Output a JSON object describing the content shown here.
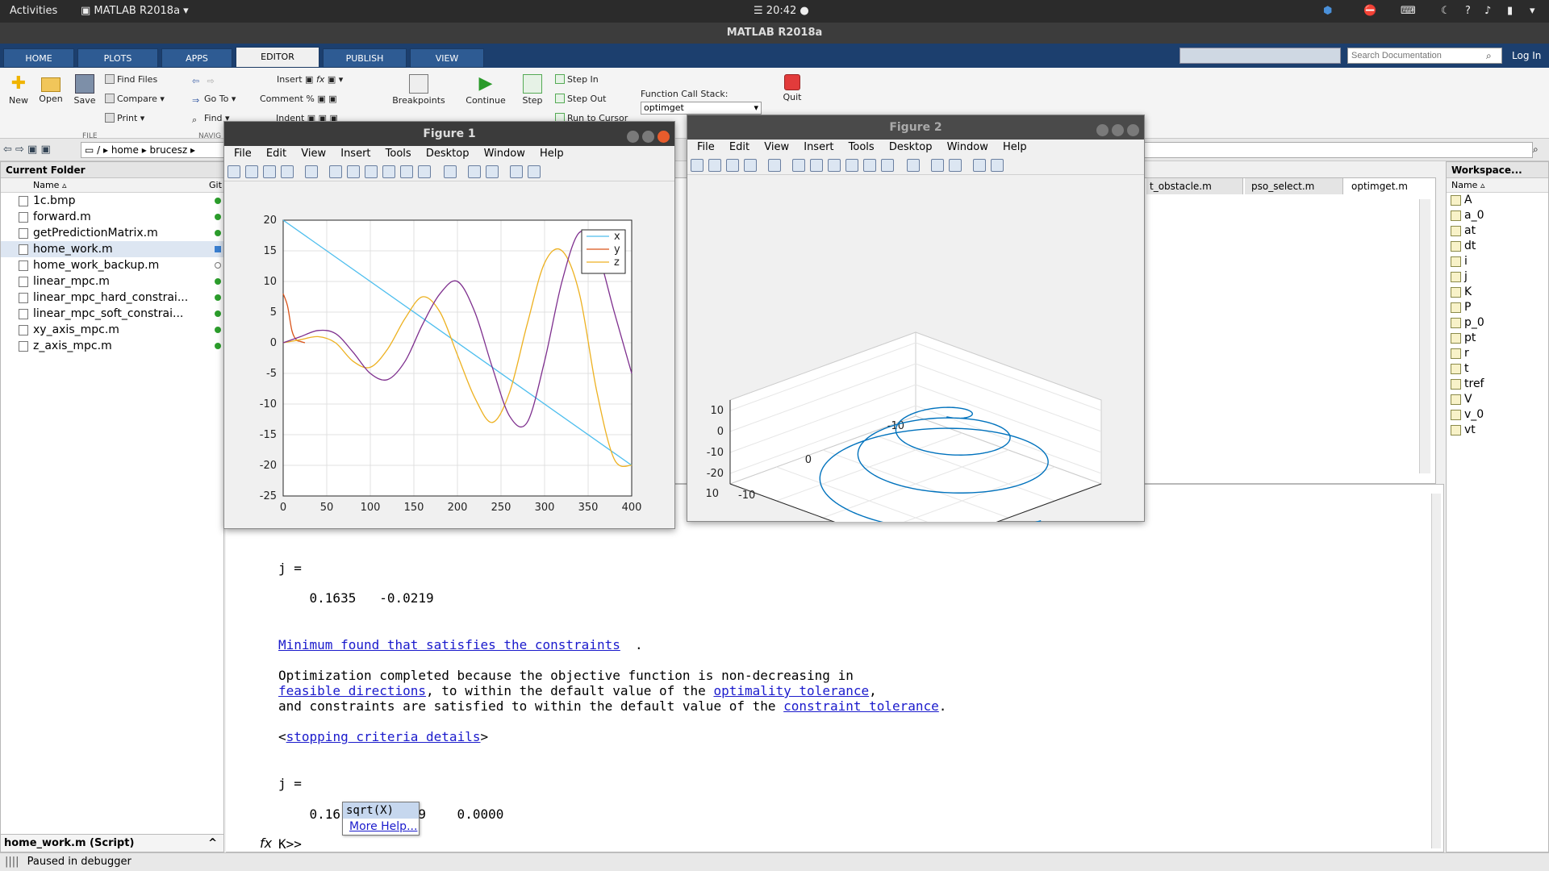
{
  "topbar": {
    "activities": "Activities",
    "app": "MATLAB R2018a",
    "clock": "20:42"
  },
  "window_title": "MATLAB R2018a",
  "ribbon_tabs": [
    "HOME",
    "PLOTS",
    "APPS",
    "EDITOR",
    "PUBLISH",
    "VIEW"
  ],
  "active_tab": "EDITOR",
  "search": {
    "placeholder": "Search Documentation",
    "login": "Log In"
  },
  "ribbon": {
    "new": "New",
    "open": "Open",
    "save": "Save",
    "find_files": "Find Files",
    "compare": "Compare",
    "print": "Print",
    "go_to": "Go To",
    "find": "Find",
    "insert": "Insert",
    "comment": "Comment",
    "indent": "Indent",
    "breakpoints": "Breakpoints",
    "continue": "Continue",
    "step": "Step",
    "step_in": "Step In",
    "step_out": "Step Out",
    "run_to_cursor": "Run to Cursor",
    "fcs_label": "Function Call Stack:",
    "fcs_value": "optimget",
    "quit": "Quit",
    "group_file": "FILE",
    "group_navigate": "NAVIG"
  },
  "address": {
    "path": [
      "/",
      "home",
      "brucesz"
    ]
  },
  "current_folder": {
    "title": "Current Folder",
    "col_name": "Name",
    "col_git": "Git",
    "files": [
      "1c.bmp",
      "forward.m",
      "getPredictionMatrix.m",
      "home_work.m",
      "home_work_backup.m",
      "linear_mpc.m",
      "linear_mpc_hard_constrai...",
      "linear_mpc_soft_constrai...",
      "xy_axis_mpc.m",
      "z_axis_mpc.m"
    ],
    "details": "home_work.m  (Script)"
  },
  "editor_tabs": [
    "t_obstacle.m",
    "pso_select.m",
    "optimget.m"
  ],
  "workspace": {
    "title": "Workspace...",
    "col_name": "Name",
    "vars": [
      "A",
      "a_0",
      "at",
      "dt",
      "i",
      "j",
      "K",
      "P",
      "p_0",
      "pt",
      "r",
      "t",
      "tref",
      "V",
      "v_0",
      "vt"
    ]
  },
  "command": {
    "j1_label": "j =",
    "j1_values": "    0.1635   -0.0219",
    "min_found": "Minimum found that satisfies the constraints",
    "opt_line1": "Optimization completed because the objective function is non-decreasing in",
    "feasible": "feasible directions",
    "opt_line2_rest": ", to within the default value of the ",
    "optimality": "optimality tolerance",
    "opt_line3": "and constraints are satisfied to within the default value of the ",
    "constraint": "constraint tolerance",
    "stopping": "stopping criteria details",
    "j2_label": "j =",
    "j2_values": "    0.16        219    0.0000",
    "prompt": "K>>",
    "tooltip_sig": "sqrt(X)",
    "tooltip_help": "More Help..."
  },
  "figure1": {
    "title": "Figure 1",
    "menu": [
      "File",
      "Edit",
      "View",
      "Insert",
      "Tools",
      "Desktop",
      "Window",
      "Help"
    ]
  },
  "figure2": {
    "title": "Figure 2",
    "menu": [
      "File",
      "Edit",
      "View",
      "Insert",
      "Tools",
      "Desktop",
      "Window",
      "Help"
    ]
  },
  "status": "Paused in debugger",
  "chart_data": [
    {
      "type": "line",
      "title": "",
      "xlim": [
        0,
        400
      ],
      "ylim": [
        -25,
        20
      ],
      "xticks": [
        0,
        50,
        100,
        150,
        200,
        250,
        300,
        350,
        400
      ],
      "yticks": [
        20,
        15,
        10,
        5,
        0,
        -5,
        -10,
        -15,
        -20,
        -25
      ],
      "grid": true,
      "legend": "top-right",
      "series": [
        {
          "name": "x",
          "color": "#4dbeee",
          "x": [
            0,
            400
          ],
          "y": [
            20,
            -20
          ]
        },
        {
          "name": "y",
          "color": "#d95319",
          "x": [
            0,
            5,
            10,
            15,
            20,
            25
          ],
          "y": [
            8,
            6,
            2,
            0.5,
            0.2,
            0
          ]
        },
        {
          "name": "z",
          "color": "#edb120",
          "x": [
            0,
            20,
            40,
            60,
            80,
            100,
            120,
            140,
            160,
            180,
            200,
            220,
            240,
            260,
            280,
            300,
            320,
            340,
            360,
            380,
            400
          ],
          "y": [
            0,
            0.5,
            1,
            0,
            -3,
            -4,
            -1,
            4,
            7.5,
            5,
            -2,
            -9,
            -13,
            -8,
            3,
            13,
            15,
            8,
            -8,
            -19,
            -20
          ]
        },
        {
          "name": "",
          "color": "#7e2f8e",
          "x": [
            0,
            20,
            40,
            60,
            80,
            100,
            120,
            140,
            160,
            180,
            200,
            220,
            240,
            260,
            280,
            300,
            320,
            340,
            360,
            380,
            400
          ],
          "y": [
            0,
            1,
            2,
            1.5,
            -1.5,
            -5,
            -6,
            -3,
            3,
            8,
            10,
            5,
            -4,
            -12,
            -13,
            -3,
            10,
            18,
            15,
            5,
            -5
          ]
        }
      ]
    },
    {
      "type": "line",
      "title": "",
      "yticks": [
        10,
        0,
        -10,
        -20
      ],
      "xticks": [
        10,
        0,
        -10
      ],
      "zticks": [
        10,
        0,
        -10
      ],
      "grid": true,
      "series": [
        {
          "name": "",
          "color": "#0072bd",
          "description_type": "3d-helix"
        }
      ]
    }
  ]
}
